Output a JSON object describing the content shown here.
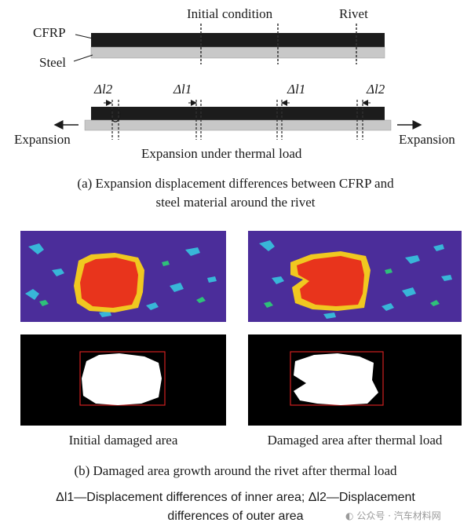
{
  "figure_a": {
    "title_initial": "Initial condition",
    "rivet_label": "Rivet",
    "cfrp_label": "CFRP",
    "steel_label": "Steel",
    "delta_l2_left": "Δl2",
    "delta_l1_left": "Δl1",
    "delta_l1_right": "Δl1",
    "delta_l2_right": "Δl2",
    "expansion_left": "Expansion",
    "expansion_right": "Expansion",
    "under_thermal": "Expansion under thermal load",
    "caption_line1": "(a) Expansion displacement differences between CFRP and",
    "caption_line2": "steel material around the rivet"
  },
  "figure_b": {
    "label_initial": "Initial damaged area",
    "label_after": "Damaged area after thermal load",
    "caption": "(b) Damaged area growth around the rivet after thermal load"
  },
  "footnote": {
    "line1": "Δl1—Displacement differences of inner area; Δl2—Displacement",
    "line2": "differences of outer area"
  },
  "watermark": "公众号 · 汽车材料网",
  "colors": {
    "cfrp": "#1c1c1c",
    "steel": "#c8c8c8",
    "contour_background": "#4b2d9a",
    "damage_core": "#e8341c",
    "threshold_background": "#000000",
    "threshold_damage": "#ffffff",
    "threshold_box": "#d02020"
  }
}
